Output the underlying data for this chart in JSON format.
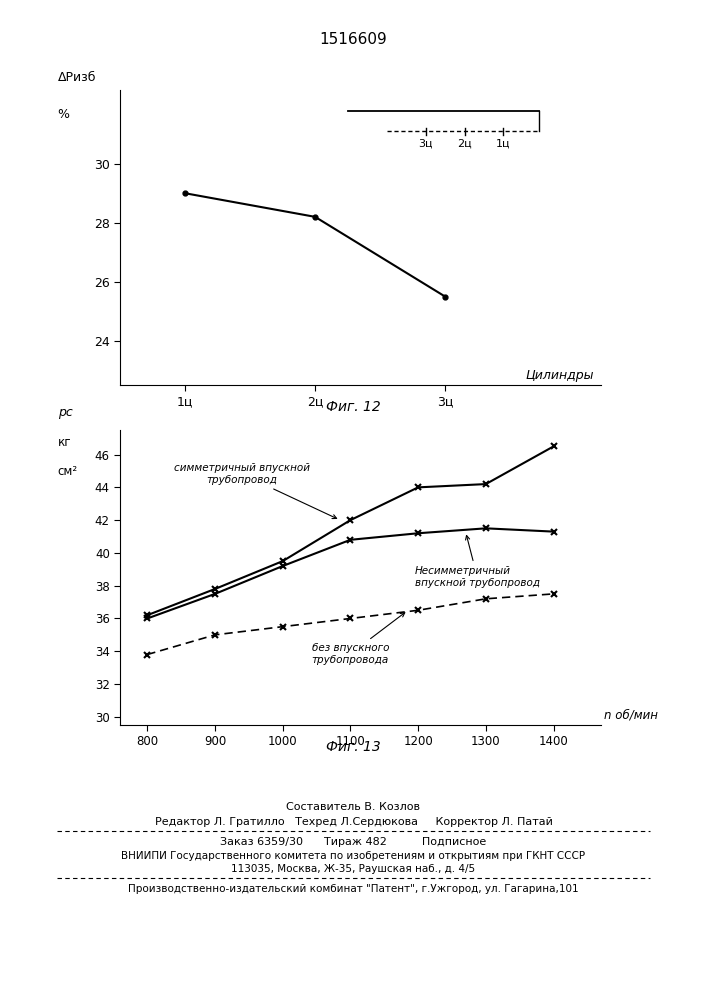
{
  "title": "1516609",
  "fig1": {
    "caption": "Фиг. 12",
    "ylabel_line1": "ΔРизб",
    "ylabel_line2": "%",
    "xlabel_label": "Цилиндры",
    "xtick_labels": [
      "1ц",
      "2ц",
      "3ц"
    ],
    "x": [
      1,
      2,
      3
    ],
    "y": [
      29.0,
      28.2,
      25.5
    ],
    "yticks": [
      24,
      26,
      28,
      30
    ],
    "ylim": [
      22.5,
      32.5
    ],
    "xlim": [
      0.5,
      4.2
    ],
    "legend_labels": [
      "3ц",
      "2ц",
      "1ц"
    ]
  },
  "fig2": {
    "caption": "Фиг. 13",
    "ylabel_line1": "рс",
    "ylabel_line2": "кг",
    "ylabel_line3": "см²",
    "xlabel_label": "n об/мин",
    "yticks": [
      30,
      32,
      34,
      36,
      38,
      40,
      42,
      44,
      46
    ],
    "ylim": [
      29.5,
      47.5
    ],
    "xticks": [
      800,
      900,
      1000,
      1100,
      1200,
      1300,
      1400
    ],
    "xlim": [
      760,
      1470
    ],
    "sym_x": [
      800,
      900,
      1000,
      1100,
      1200,
      1300,
      1400
    ],
    "sym_y": [
      36.2,
      37.8,
      39.5,
      42.0,
      44.0,
      44.2,
      46.5
    ],
    "asym_x": [
      800,
      900,
      1000,
      1100,
      1200,
      1300,
      1400
    ],
    "asym_y": [
      36.0,
      37.5,
      39.2,
      40.8,
      41.2,
      41.5,
      41.3
    ],
    "no_pipe_x": [
      800,
      900,
      1000,
      1100,
      1200,
      1300,
      1400
    ],
    "no_pipe_y": [
      33.8,
      35.0,
      35.5,
      36.0,
      36.5,
      37.2,
      37.5
    ],
    "label_sym": "симметричный впускной\nтрубопровод",
    "label_asym": "Несимметричный\nвпускной трубопровод",
    "label_nopipe": "без впускного\nтрубопровода"
  },
  "footer": {
    "line0": "Составитель В. Козлов",
    "line1": "Редактор Л. Гратилло   Техред Л.Сердюкова     Корректор Л. Патай",
    "line2": "Заказ 6359/30      Тираж 482          Подписное",
    "line3": "ВНИИПИ Государственного комитета по изобретениям и открытиям при ГКНТ СССР",
    "line4": "113035, Москва, Ж-35, Раушская наб., д. 4/5",
    "line5": "Производственно-издательский комбинат \"Патент\", г.Ужгород, ул. Гагарина,101"
  }
}
